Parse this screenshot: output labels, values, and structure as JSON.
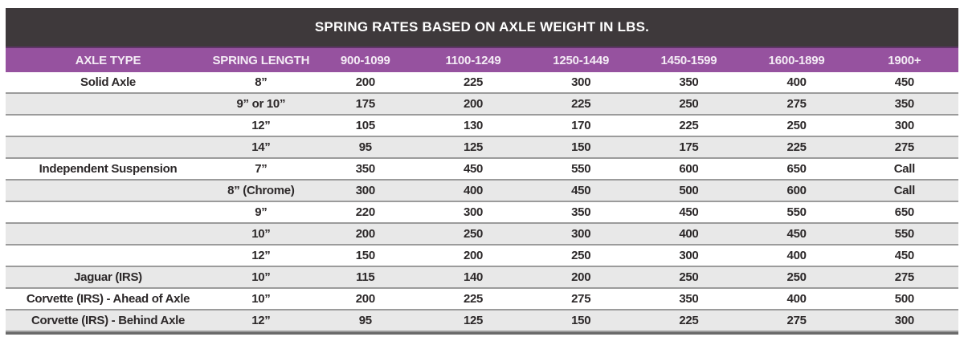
{
  "title": "SPRING RATES BASED ON AXLE WEIGHT IN LBS.",
  "chart_data": {
    "type": "table",
    "title": "SPRING RATES BASED ON AXLE WEIGHT IN LBS.",
    "columns": [
      "AXLE TYPE",
      "SPRING LENGTH",
      "900-1099",
      "1100-1249",
      "1250-1449",
      "1450-1599",
      "1600-1899",
      "1900+"
    ],
    "rows": [
      [
        "Solid Axle",
        "8”",
        "200",
        "225",
        "300",
        "350",
        "400",
        "450"
      ],
      [
        "",
        "9” or 10”",
        "175",
        "200",
        "225",
        "250",
        "275",
        "350"
      ],
      [
        "",
        "12”",
        "105",
        "130",
        "170",
        "225",
        "250",
        "300"
      ],
      [
        "",
        "14”",
        "95",
        "125",
        "150",
        "175",
        "225",
        "275"
      ],
      [
        "Independent Suspension",
        "7”",
        "350",
        "450",
        "550",
        "600",
        "650",
        "Call"
      ],
      [
        "",
        "8” (Chrome)",
        "300",
        "400",
        "450",
        "500",
        "600",
        "Call"
      ],
      [
        "",
        "9”",
        "220",
        "300",
        "350",
        "450",
        "550",
        "650"
      ],
      [
        "",
        "10”",
        "200",
        "250",
        "300",
        "400",
        "450",
        "550"
      ],
      [
        "",
        "12”",
        "150",
        "200",
        "250",
        "300",
        "400",
        "450"
      ],
      [
        "Jaguar (IRS)",
        "10”",
        "115",
        "140",
        "200",
        "250",
        "250",
        "275"
      ],
      [
        "Corvette (IRS) - Ahead of Axle",
        "10”",
        "200",
        "225",
        "275",
        "350",
        "400",
        "500"
      ],
      [
        "Corvette (IRS) - Behind Axle",
        "12”",
        "95",
        "125",
        "150",
        "225",
        "275",
        "300"
      ]
    ]
  },
  "colors": {
    "title_bar_bg": "#3e393b",
    "header_bg": "#96529f",
    "header_text": "#f4ecf5",
    "row_alt_bg": "#e8e8e8",
    "row_border": "#9b9b9b",
    "table_bottom_border": "#6a6a6a",
    "body_text": "#2c2829"
  }
}
